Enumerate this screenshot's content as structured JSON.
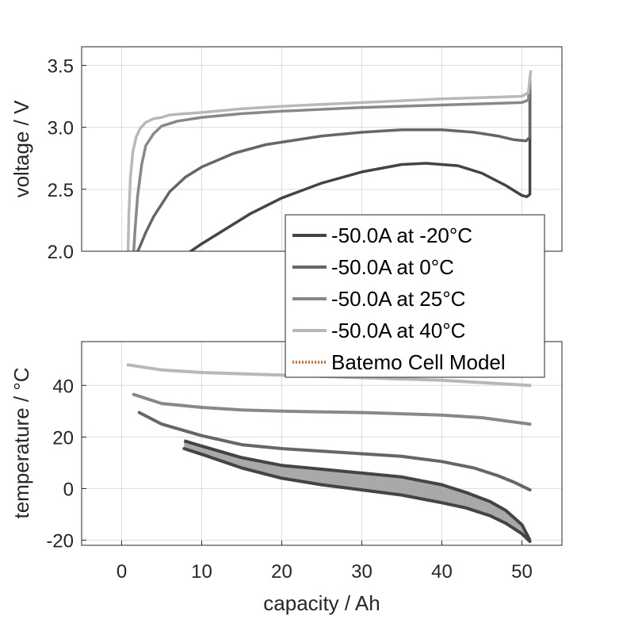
{
  "chart_data": [
    {
      "type": "line",
      "ylabel": "voltage / V",
      "xlim": [
        -5,
        55
      ],
      "ylim": [
        2.0,
        3.65
      ],
      "yticks": [
        "2.0",
        "2.5",
        "3.0",
        "3.5"
      ],
      "ytick_values": [
        2.0,
        2.5,
        3.0,
        3.5
      ],
      "grid": true,
      "series": [
        {
          "name": "-50.0A at -20°C",
          "color": "#444444",
          "x": [
            7.5,
            10,
            13,
            16,
            20,
            25,
            30,
            35,
            38,
            42,
            45,
            48,
            50,
            50.6,
            51.0,
            51.0
          ],
          "y": [
            1.95,
            2.06,
            2.18,
            2.3,
            2.43,
            2.55,
            2.64,
            2.7,
            2.71,
            2.69,
            2.63,
            2.53,
            2.45,
            2.44,
            2.46,
            3.3
          ]
        },
        {
          "name": "-50.0A at 0°C",
          "color": "#666666",
          "x": [
            2.0,
            2.3,
            3,
            4,
            5,
            6,
            8,
            10,
            14,
            18,
            25,
            30,
            35,
            40,
            44,
            47,
            49,
            50.5,
            51.0,
            51.0
          ],
          "y": [
            2.0,
            2.04,
            2.15,
            2.28,
            2.38,
            2.48,
            2.6,
            2.68,
            2.79,
            2.86,
            2.93,
            2.96,
            2.98,
            2.98,
            2.96,
            2.93,
            2.9,
            2.89,
            2.92,
            3.38
          ]
        },
        {
          "name": "-50.0A at 25°C",
          "color": "#888888",
          "x": [
            1.5,
            1.7,
            2.0,
            2.5,
            3.0,
            4,
            5,
            7,
            10,
            15,
            20,
            30,
            40,
            50,
            50.8,
            51.0
          ],
          "y": [
            2.0,
            2.2,
            2.45,
            2.7,
            2.85,
            2.95,
            3.01,
            3.05,
            3.08,
            3.11,
            3.13,
            3.16,
            3.18,
            3.2,
            3.22,
            3.4
          ]
        },
        {
          "name": "-50.0A at 40°C",
          "color": "#b8b8b8",
          "x": [
            0.8,
            0.9,
            1.1,
            1.4,
            1.8,
            2.3,
            3,
            4,
            5,
            6,
            8,
            10,
            15,
            20,
            30,
            40,
            50,
            50.8,
            51.1
          ],
          "y": [
            2.0,
            2.3,
            2.6,
            2.8,
            2.92,
            2.99,
            3.04,
            3.07,
            3.08,
            3.1,
            3.11,
            3.12,
            3.15,
            3.17,
            3.2,
            3.23,
            3.25,
            3.28,
            3.45
          ]
        }
      ]
    },
    {
      "type": "line",
      "xlabel": "capacity / Ah",
      "ylabel": "temperature / °C",
      "xlim": [
        -5,
        55
      ],
      "ylim": [
        -22,
        57
      ],
      "xticks": [
        "0",
        "10",
        "20",
        "30",
        "40",
        "50"
      ],
      "xtick_values": [
        0,
        10,
        20,
        30,
        40,
        50
      ],
      "yticks": [
        "-20",
        "0",
        "20",
        "40"
      ],
      "ytick_values": [
        -20,
        0,
        20,
        40
      ],
      "grid": true,
      "series": [
        {
          "name": "-50.0A at -20°C",
          "color": "#444444",
          "x": [
            7.8,
            10,
            15,
            20,
            25,
            30,
            35,
            40,
            43,
            46,
            48,
            50,
            51
          ],
          "y": [
            15.5,
            13.3,
            8.0,
            4.0,
            1.5,
            -0.5,
            -2.5,
            -5.5,
            -7.5,
            -10.5,
            -13.5,
            -17.5,
            -20.5
          ],
          "y_upper": [
            18.5,
            16.5,
            12.0,
            9.0,
            7.5,
            6.0,
            4.5,
            1.5,
            -1.5,
            -5.0,
            -8.5,
            -14.0,
            -20.0
          ]
        },
        {
          "name": "-50.0A at 0°C",
          "color": "#666666",
          "x": [
            2.2,
            5,
            10,
            15,
            20,
            25,
            30,
            35,
            40,
            44,
            47,
            49,
            51
          ],
          "y": [
            29.5,
            25.0,
            20.5,
            17.0,
            15.5,
            14.5,
            13.5,
            12.5,
            10.5,
            8.0,
            5.0,
            2.5,
            -0.5
          ]
        },
        {
          "name": "-50.0A at 25°C",
          "color": "#888888",
          "x": [
            1.5,
            5,
            10,
            15,
            20,
            30,
            40,
            45,
            51
          ],
          "y": [
            36.5,
            33.0,
            31.5,
            30.5,
            30.0,
            29.5,
            28.5,
            27.5,
            25.0
          ]
        },
        {
          "name": "-50.0A at 40°C",
          "color": "#b8b8b8",
          "x": [
            0.8,
            5,
            10,
            20,
            30,
            40,
            51
          ],
          "y": [
            48.0,
            46.0,
            45.0,
            44.0,
            43.0,
            42.0,
            40.0
          ]
        }
      ]
    }
  ],
  "legend": {
    "placement": "right-middle",
    "entries": [
      {
        "label": "-50.0A at -20°C",
        "color": "#444444",
        "style": "solid"
      },
      {
        "label": "-50.0A at 0°C",
        "color": "#666666",
        "style": "solid"
      },
      {
        "label": "-50.0A at 25°C",
        "color": "#888888",
        "style": "solid"
      },
      {
        "label": "-50.0A at 40°C",
        "color": "#b8b8b8",
        "style": "solid"
      },
      {
        "label": "Batemo Cell Model",
        "color": "#e8601c",
        "style": "dotted"
      }
    ]
  }
}
